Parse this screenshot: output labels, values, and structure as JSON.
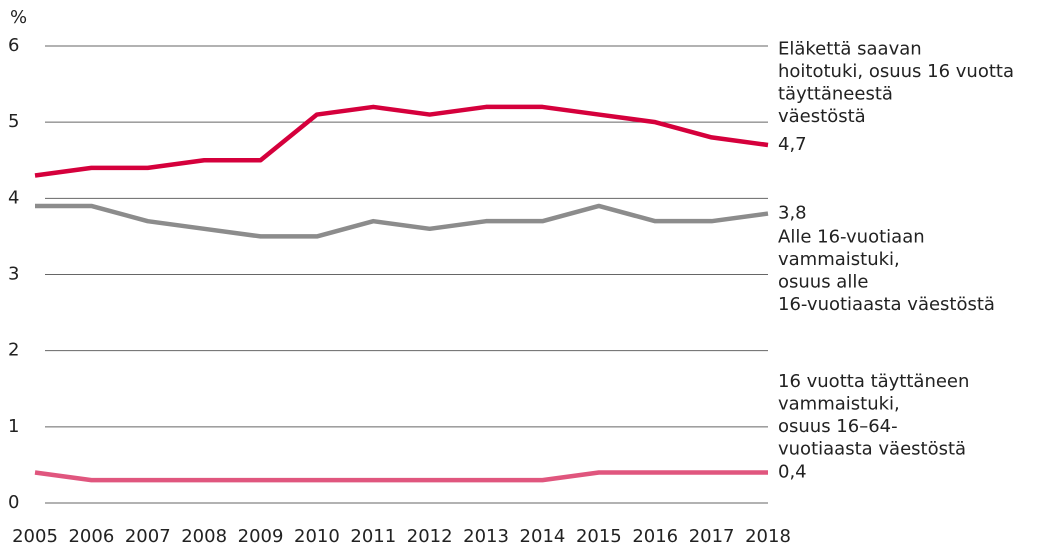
{
  "chart_data": {
    "type": "line",
    "y_label": "%",
    "x": [
      2005,
      2006,
      2007,
      2008,
      2009,
      2010,
      2011,
      2012,
      2013,
      2014,
      2015,
      2016,
      2017,
      2018
    ],
    "xlim": [
      2005,
      2018
    ],
    "xticks": [
      2005,
      2006,
      2007,
      2008,
      2009,
      2010,
      2011,
      2012,
      2013,
      2014,
      2015,
      2016,
      2017,
      2018
    ],
    "ylim": [
      0,
      6
    ],
    "yticks": [
      0,
      1,
      2,
      3,
      4,
      5,
      6
    ],
    "grid": true,
    "series": [
      {
        "name": "Eläkettä saavan\nhoitotuki, osuus 16 vuotta\ntäyttäneestä\nväestöstä",
        "color": "#d5003c",
        "values": [
          4.3,
          4.4,
          4.4,
          4.5,
          4.5,
          5.1,
          5.2,
          5.1,
          5.2,
          5.2,
          5.1,
          5.0,
          4.8,
          4.7
        ],
        "end_value": 4.7,
        "end_value_label": "4,7"
      },
      {
        "name": "Alle 16-vuotiaan\nvammaistuki,\nosuus alle\n16-vuotiaasta väestöstä",
        "color": "#8c8c8c",
        "values": [
          3.9,
          3.9,
          3.7,
          3.6,
          3.5,
          3.5,
          3.7,
          3.6,
          3.7,
          3.7,
          3.9,
          3.7,
          3.7,
          3.8
        ],
        "end_value": 3.8,
        "end_value_label": "3,8"
      },
      {
        "name": "16 vuotta täyttäneen\nvammaistuki,\nosuus 16–64-\nvuotiaasta väestöstä",
        "color": "#e0567e",
        "values": [
          0.4,
          0.3,
          0.3,
          0.3,
          0.3,
          0.3,
          0.3,
          0.3,
          0.3,
          0.3,
          0.4,
          0.4,
          0.4,
          0.4
        ],
        "end_value": 0.4,
        "end_value_label": "0,4"
      }
    ]
  }
}
